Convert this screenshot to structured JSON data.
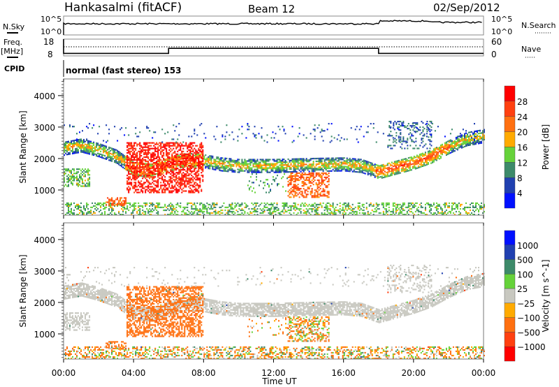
{
  "header": {
    "title": "Hankasalmi (fitACF)",
    "beam": "Beam 12",
    "date": "02/Sep/2012"
  },
  "noise_panel": {
    "left_label": "N.Sky",
    "right_label": "N.Search",
    "left_ticks": [
      "10^5",
      "10^0"
    ],
    "right_ticks": [
      "10^5",
      "10^0"
    ]
  },
  "freq_panel": {
    "left_label_1": "Freq.",
    "left_label_2": "[MHz]",
    "right_label": "Nave",
    "left_ticks": [
      "18",
      "8"
    ],
    "right_ticks": [
      "60",
      "0"
    ],
    "freq_steps": [
      {
        "t0": 0,
        "t1": 6,
        "level": 0.15
      },
      {
        "t0": 6,
        "t1": 18,
        "level": 0.45
      },
      {
        "t0": 18,
        "t1": 24,
        "level": 0.15
      }
    ]
  },
  "cpid": {
    "label": "CPID",
    "value": "normal (fast stereo) 153"
  },
  "chart_data": [
    {
      "type": "heatmap",
      "name": "power",
      "ylabel": "Slant Range [km]",
      "xlabel": "Time UT",
      "xlim": [
        0,
        24
      ],
      "ylim": [
        200,
        4530
      ],
      "yticks": [
        "1000",
        "2000",
        "3000",
        "4000"
      ],
      "ytick_values": [
        1000,
        2000,
        3000,
        4000
      ],
      "xticks": [
        "00:00",
        "04:00",
        "08:00",
        "12:00",
        "16:00",
        "20:00",
        "00:00"
      ],
      "xtick_values": [
        0,
        4,
        8,
        12,
        16,
        20,
        24
      ],
      "colorbar": {
        "label": "Power [dB]",
        "ticks": [
          "4",
          "8",
          "12",
          "16",
          "20",
          "24",
          "28"
        ],
        "colors": [
          "#0010ff",
          "#2040b0",
          "#3d8a6a",
          "#66d23a",
          "#ffaa00",
          "#ff7010",
          "#ff4010",
          "#ff0000"
        ]
      }
    },
    {
      "type": "heatmap",
      "name": "velocity",
      "ylabel": "Slant Range [km]",
      "xlabel": "Time UT",
      "xlim": [
        0,
        24
      ],
      "ylim": [
        200,
        4530
      ],
      "yticks": [
        "1000",
        "2000",
        "3000",
        "4000"
      ],
      "ytick_values": [
        1000,
        2000,
        3000,
        4000
      ],
      "xticks": [
        "00:00",
        "04:00",
        "08:00",
        "12:00",
        "16:00",
        "20:00",
        "00:00"
      ],
      "xtick_values": [
        0,
        4,
        8,
        12,
        16,
        20,
        24
      ],
      "colorbar": {
        "label": "Velocity [m s^-1]",
        "ticks": [
          "1000",
          "500",
          "100",
          "25",
          "−25",
          "−100",
          "−500",
          "−1000"
        ],
        "colors": [
          "#0010ff",
          "#2040b0",
          "#3d8a6a",
          "#66d23a",
          "#c8c8c0",
          "#ffaa00",
          "#ff7010",
          "#ff4010",
          "#ff0000"
        ]
      }
    }
  ],
  "echo_regions": [
    {
      "kind": "band",
      "t0": 0,
      "t1": 24,
      "center": [
        [
          0,
          2300
        ],
        [
          1,
          2400
        ],
        [
          2,
          2250
        ],
        [
          3,
          2050
        ],
        [
          4,
          1650
        ],
        [
          5,
          1600
        ],
        [
          6,
          1800
        ],
        [
          7,
          1950
        ],
        [
          8,
          1900
        ],
        [
          9,
          1800
        ],
        [
          10,
          1750
        ],
        [
          12,
          1750
        ],
        [
          14,
          1780
        ],
        [
          16,
          1800
        ],
        [
          17,
          1750
        ],
        [
          18,
          1550
        ],
        [
          19,
          1700
        ],
        [
          20,
          1850
        ],
        [
          21,
          2050
        ],
        [
          22,
          2350
        ],
        [
          23,
          2600
        ],
        [
          24,
          2700
        ]
      ],
      "width": 420,
      "power": 15,
      "velocity": 0,
      "density": 0.75
    },
    {
      "kind": "box",
      "t0": 0,
      "t1": 1.5,
      "r0": 1100,
      "r1": 1650,
      "power": 10,
      "velocity": 0,
      "density": 0.5
    },
    {
      "kind": "box",
      "t0": 3.6,
      "t1": 8,
      "r0": 900,
      "r1": 2500,
      "power": 22,
      "velocity": -300,
      "density": 0.55
    },
    {
      "kind": "box",
      "t0": 0,
      "t1": 24,
      "r0": 200,
      "r1": 600,
      "power": 10,
      "velocity": -60,
      "density": 0.4
    },
    {
      "kind": "box",
      "t0": 2.4,
      "t1": 3.6,
      "r0": 500,
      "r1": 750,
      "power": 18,
      "velocity": -300,
      "density": 0.5
    },
    {
      "kind": "box",
      "t0": 12.8,
      "t1": 15.2,
      "r0": 750,
      "r1": 1550,
      "power": 18,
      "velocity": -80,
      "density": 0.5
    },
    {
      "kind": "box",
      "t0": 10.5,
      "t1": 12.8,
      "r0": 900,
      "r1": 1500,
      "power": 8,
      "velocity": -150,
      "density": 0.12
    },
    {
      "kind": "box",
      "t0": 18.5,
      "t1": 21,
      "r0": 2300,
      "r1": 3200,
      "power": 6,
      "velocity": 0,
      "density": 0.25
    },
    {
      "kind": "box",
      "t0": 0,
      "t1": 24,
      "r0": 2500,
      "r1": 3100,
      "power": 5,
      "velocity": 0,
      "density": 0.05
    }
  ],
  "colors": {
    "axis": "#000000",
    "frame": "#888888"
  }
}
